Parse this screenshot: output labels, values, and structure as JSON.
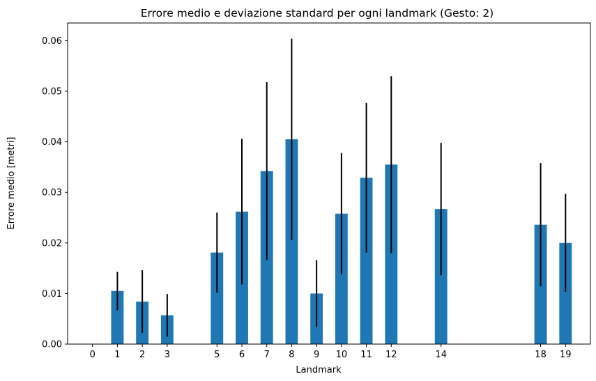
{
  "chart_data": {
    "type": "bar",
    "title": "Errore medio e deviazione standard per ogni landmark (Gesto: 2)",
    "xlabel": "Landmark",
    "ylabel": "Errore medio [metri]",
    "x_ticks": [
      0,
      1,
      2,
      3,
      5,
      6,
      7,
      8,
      9,
      10,
      11,
      12,
      14,
      18,
      19
    ],
    "xlim": [
      -1.0,
      20.0
    ],
    "ylim": [
      0,
      0.0635
    ],
    "y_ticks": [
      "0.00",
      "0.01",
      "0.02",
      "0.03",
      "0.04",
      "0.05",
      "0.06"
    ],
    "categories": [
      1,
      2,
      3,
      5,
      6,
      7,
      8,
      9,
      10,
      11,
      12,
      14,
      18,
      19
    ],
    "values": [
      0.0105,
      0.0084,
      0.0057,
      0.0181,
      0.0262,
      0.0342,
      0.0405,
      0.01,
      0.0258,
      0.0329,
      0.0355,
      0.0267,
      0.0236,
      0.02
    ],
    "errors": [
      0.0038,
      0.0062,
      0.0042,
      0.0079,
      0.0144,
      0.0176,
      0.0199,
      0.0066,
      0.012,
      0.0148,
      0.0175,
      0.0131,
      0.0122,
      0.0097
    ],
    "bar_color": "#1f77b4",
    "error_color": "#000000",
    "grid": false,
    "legend": "none"
  }
}
